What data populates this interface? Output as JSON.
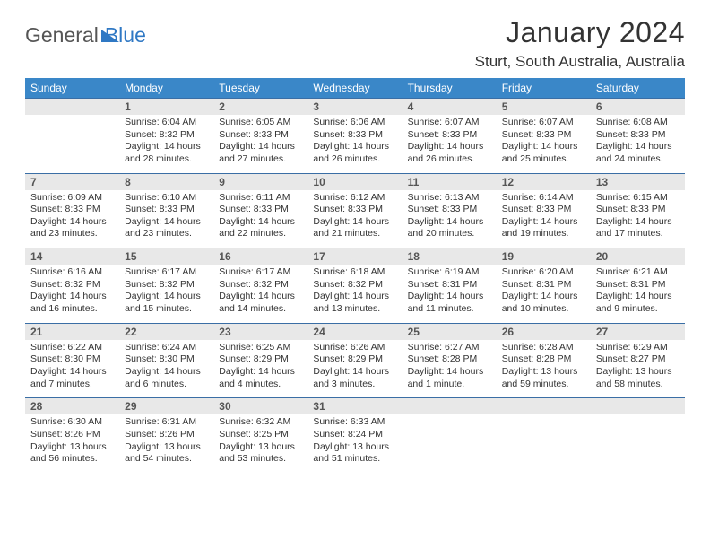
{
  "logo": {
    "part1": "General",
    "part2": "Blue"
  },
  "title": "January 2024",
  "location": "Sturt, South Australia, Australia",
  "headers": [
    "Sunday",
    "Monday",
    "Tuesday",
    "Wednesday",
    "Thursday",
    "Friday",
    "Saturday"
  ],
  "colors": {
    "header_bg": "#3a87c8",
    "daynum_bg": "#e8e8e8",
    "border": "#3a6ea5",
    "logo_blue": "#2f78c4"
  },
  "weeks": [
    [
      {
        "n": "",
        "s": "",
        "t": "",
        "d": ""
      },
      {
        "n": "1",
        "s": "Sunrise: 6:04 AM",
        "t": "Sunset: 8:32 PM",
        "d": "Daylight: 14 hours and 28 minutes."
      },
      {
        "n": "2",
        "s": "Sunrise: 6:05 AM",
        "t": "Sunset: 8:33 PM",
        "d": "Daylight: 14 hours and 27 minutes."
      },
      {
        "n": "3",
        "s": "Sunrise: 6:06 AM",
        "t": "Sunset: 8:33 PM",
        "d": "Daylight: 14 hours and 26 minutes."
      },
      {
        "n": "4",
        "s": "Sunrise: 6:07 AM",
        "t": "Sunset: 8:33 PM",
        "d": "Daylight: 14 hours and 26 minutes."
      },
      {
        "n": "5",
        "s": "Sunrise: 6:07 AM",
        "t": "Sunset: 8:33 PM",
        "d": "Daylight: 14 hours and 25 minutes."
      },
      {
        "n": "6",
        "s": "Sunrise: 6:08 AM",
        "t": "Sunset: 8:33 PM",
        "d": "Daylight: 14 hours and 24 minutes."
      }
    ],
    [
      {
        "n": "7",
        "s": "Sunrise: 6:09 AM",
        "t": "Sunset: 8:33 PM",
        "d": "Daylight: 14 hours and 23 minutes."
      },
      {
        "n": "8",
        "s": "Sunrise: 6:10 AM",
        "t": "Sunset: 8:33 PM",
        "d": "Daylight: 14 hours and 23 minutes."
      },
      {
        "n": "9",
        "s": "Sunrise: 6:11 AM",
        "t": "Sunset: 8:33 PM",
        "d": "Daylight: 14 hours and 22 minutes."
      },
      {
        "n": "10",
        "s": "Sunrise: 6:12 AM",
        "t": "Sunset: 8:33 PM",
        "d": "Daylight: 14 hours and 21 minutes."
      },
      {
        "n": "11",
        "s": "Sunrise: 6:13 AM",
        "t": "Sunset: 8:33 PM",
        "d": "Daylight: 14 hours and 20 minutes."
      },
      {
        "n": "12",
        "s": "Sunrise: 6:14 AM",
        "t": "Sunset: 8:33 PM",
        "d": "Daylight: 14 hours and 19 minutes."
      },
      {
        "n": "13",
        "s": "Sunrise: 6:15 AM",
        "t": "Sunset: 8:33 PM",
        "d": "Daylight: 14 hours and 17 minutes."
      }
    ],
    [
      {
        "n": "14",
        "s": "Sunrise: 6:16 AM",
        "t": "Sunset: 8:32 PM",
        "d": "Daylight: 14 hours and 16 minutes."
      },
      {
        "n": "15",
        "s": "Sunrise: 6:17 AM",
        "t": "Sunset: 8:32 PM",
        "d": "Daylight: 14 hours and 15 minutes."
      },
      {
        "n": "16",
        "s": "Sunrise: 6:17 AM",
        "t": "Sunset: 8:32 PM",
        "d": "Daylight: 14 hours and 14 minutes."
      },
      {
        "n": "17",
        "s": "Sunrise: 6:18 AM",
        "t": "Sunset: 8:32 PM",
        "d": "Daylight: 14 hours and 13 minutes."
      },
      {
        "n": "18",
        "s": "Sunrise: 6:19 AM",
        "t": "Sunset: 8:31 PM",
        "d": "Daylight: 14 hours and 11 minutes."
      },
      {
        "n": "19",
        "s": "Sunrise: 6:20 AM",
        "t": "Sunset: 8:31 PM",
        "d": "Daylight: 14 hours and 10 minutes."
      },
      {
        "n": "20",
        "s": "Sunrise: 6:21 AM",
        "t": "Sunset: 8:31 PM",
        "d": "Daylight: 14 hours and 9 minutes."
      }
    ],
    [
      {
        "n": "21",
        "s": "Sunrise: 6:22 AM",
        "t": "Sunset: 8:30 PM",
        "d": "Daylight: 14 hours and 7 minutes."
      },
      {
        "n": "22",
        "s": "Sunrise: 6:24 AM",
        "t": "Sunset: 8:30 PM",
        "d": "Daylight: 14 hours and 6 minutes."
      },
      {
        "n": "23",
        "s": "Sunrise: 6:25 AM",
        "t": "Sunset: 8:29 PM",
        "d": "Daylight: 14 hours and 4 minutes."
      },
      {
        "n": "24",
        "s": "Sunrise: 6:26 AM",
        "t": "Sunset: 8:29 PM",
        "d": "Daylight: 14 hours and 3 minutes."
      },
      {
        "n": "25",
        "s": "Sunrise: 6:27 AM",
        "t": "Sunset: 8:28 PM",
        "d": "Daylight: 14 hours and 1 minute."
      },
      {
        "n": "26",
        "s": "Sunrise: 6:28 AM",
        "t": "Sunset: 8:28 PM",
        "d": "Daylight: 13 hours and 59 minutes."
      },
      {
        "n": "27",
        "s": "Sunrise: 6:29 AM",
        "t": "Sunset: 8:27 PM",
        "d": "Daylight: 13 hours and 58 minutes."
      }
    ],
    [
      {
        "n": "28",
        "s": "Sunrise: 6:30 AM",
        "t": "Sunset: 8:26 PM",
        "d": "Daylight: 13 hours and 56 minutes."
      },
      {
        "n": "29",
        "s": "Sunrise: 6:31 AM",
        "t": "Sunset: 8:26 PM",
        "d": "Daylight: 13 hours and 54 minutes."
      },
      {
        "n": "30",
        "s": "Sunrise: 6:32 AM",
        "t": "Sunset: 8:25 PM",
        "d": "Daylight: 13 hours and 53 minutes."
      },
      {
        "n": "31",
        "s": "Sunrise: 6:33 AM",
        "t": "Sunset: 8:24 PM",
        "d": "Daylight: 13 hours and 51 minutes."
      },
      {
        "n": "",
        "s": "",
        "t": "",
        "d": ""
      },
      {
        "n": "",
        "s": "",
        "t": "",
        "d": ""
      },
      {
        "n": "",
        "s": "",
        "t": "",
        "d": ""
      }
    ]
  ]
}
